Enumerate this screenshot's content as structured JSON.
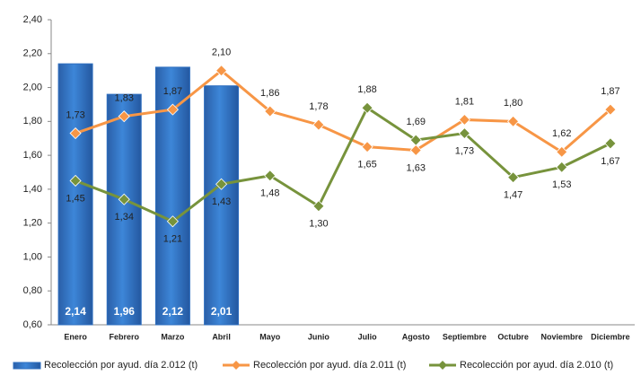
{
  "chart_data": {
    "type": "bar-line",
    "categories": [
      "Enero",
      "Febrero",
      "Marzo",
      "Abril",
      "Mayo",
      "Junio",
      "Julio",
      "Agosto",
      "Septiembre",
      "Octubre",
      "Noviembre",
      "Diciembre"
    ],
    "series": [
      {
        "name": "Recolección por ayud. día 2.012 (t)",
        "type": "bar",
        "color": "#2e6fc0",
        "values": [
          2.14,
          1.96,
          2.12,
          2.01,
          null,
          null,
          null,
          null,
          null,
          null,
          null,
          null
        ],
        "value_labels": [
          "2,14",
          "1,96",
          "2,12",
          "2,01",
          null,
          null,
          null,
          null,
          null,
          null,
          null,
          null
        ]
      },
      {
        "name": "Recolección por ayud. día 2.011 (t)",
        "type": "line",
        "color": "#f79646",
        "values": [
          1.73,
          1.83,
          1.87,
          2.1,
          1.86,
          1.78,
          1.65,
          1.63,
          1.81,
          1.8,
          1.62,
          1.87
        ],
        "value_labels": [
          "1,73",
          "1,83",
          "1,87",
          "2,10",
          "1,86",
          "1,78",
          "1,65",
          "1,63",
          "1,81",
          "1,80",
          "1,62",
          "1,87"
        ]
      },
      {
        "name": "Recolección por ayud. día 2.010 (t)",
        "type": "line",
        "color": "#77933c",
        "values": [
          1.45,
          1.34,
          1.21,
          1.43,
          1.48,
          1.3,
          1.88,
          1.69,
          1.73,
          1.47,
          1.53,
          1.67
        ],
        "value_labels": [
          "1,45",
          "1,34",
          "1,21",
          "1,43",
          "1,48",
          "1,30",
          "1,88",
          "1,69",
          "1,73",
          "1,47",
          "1,53",
          "1,67"
        ]
      }
    ],
    "ylim": [
      0.6,
      2.4
    ],
    "yticks": [
      {
        "value": 0.6,
        "label": "0,60"
      },
      {
        "value": 0.8,
        "label": "0,80"
      },
      {
        "value": 1.0,
        "label": "1,00"
      },
      {
        "value": 1.2,
        "label": "1,20"
      },
      {
        "value": 1.4,
        "label": "1,40"
      },
      {
        "value": 1.6,
        "label": "1,60"
      },
      {
        "value": 1.8,
        "label": "1,80"
      },
      {
        "value": 2.0,
        "label": "2,00"
      },
      {
        "value": 2.2,
        "label": "2,20"
      },
      {
        "value": 2.4,
        "label": "2,40"
      }
    ],
    "grid": false,
    "legend": "bottom"
  }
}
